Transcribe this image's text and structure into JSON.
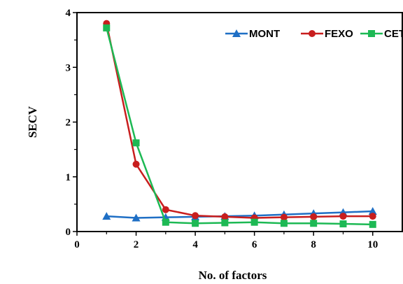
{
  "chart_data": {
    "type": "line",
    "xlabel": "No. of factors",
    "ylabel": "SECV",
    "xlim": [
      0,
      11
    ],
    "ylim": [
      0,
      4
    ],
    "xticks": [
      0,
      2,
      4,
      6,
      8,
      10
    ],
    "yticks": [
      0,
      1,
      2,
      3,
      4
    ],
    "grid": false,
    "legend_position": "top-right",
    "x": [
      1,
      2,
      3,
      4,
      5,
      6,
      7,
      8,
      9,
      10
    ],
    "series": [
      {
        "name": "MONT",
        "color": "#1f6fc5",
        "marker": "triangle",
        "values": [
          0.28,
          0.25,
          0.26,
          0.27,
          0.28,
          0.29,
          0.31,
          0.33,
          0.35,
          0.37
        ]
      },
      {
        "name": "FEXO",
        "color": "#c81e1e",
        "marker": "circle",
        "values": [
          3.8,
          1.23,
          0.4,
          0.29,
          0.27,
          0.25,
          0.26,
          0.27,
          0.28,
          0.28
        ]
      },
      {
        "name": "CET",
        "color": "#1db954",
        "marker": "square",
        "values": [
          3.72,
          1.62,
          0.17,
          0.15,
          0.16,
          0.17,
          0.15,
          0.15,
          0.14,
          0.13
        ]
      }
    ]
  }
}
